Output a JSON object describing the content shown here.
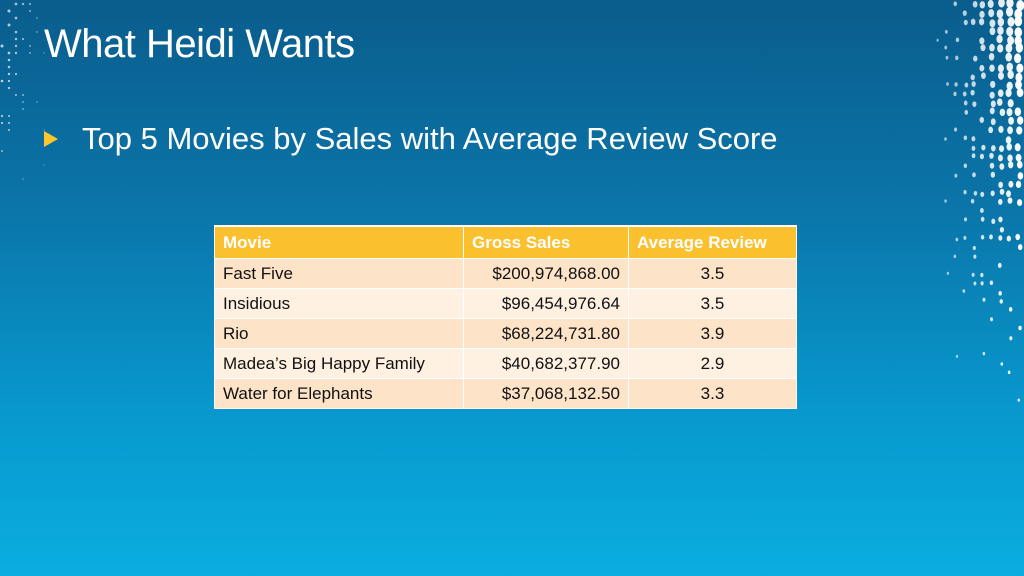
{
  "slide": {
    "title": "What Heidi Wants",
    "bullet": "Top 5 Movies by Sales with Average Review Score"
  },
  "table": {
    "headers": [
      "Movie",
      "Gross Sales",
      "Average Review"
    ],
    "rows": [
      {
        "movie": "Fast Five",
        "gross": "$200,974,868.00",
        "review": "3.5"
      },
      {
        "movie": "Insidious",
        "gross": "$96,454,976.64",
        "review": "3.5"
      },
      {
        "movie": "Rio",
        "gross": "$68,224,731.80",
        "review": "3.9"
      },
      {
        "movie": "Madea’s Big Happy Family",
        "gross": "$40,682,377.90",
        "review": "2.9"
      },
      {
        "movie": "Water for Elephants",
        "gross": "$37,068,132.50",
        "review": "3.3"
      }
    ]
  },
  "colors": {
    "background_top": "#0a5d8c",
    "background_bottom": "#0aaee0",
    "accent": "#fbc02d",
    "row_odd": "#fde3c7",
    "row_even": "#fef1e1"
  },
  "icons": {
    "bullet": "triangle-right-icon",
    "decoration": "dot-pattern"
  }
}
